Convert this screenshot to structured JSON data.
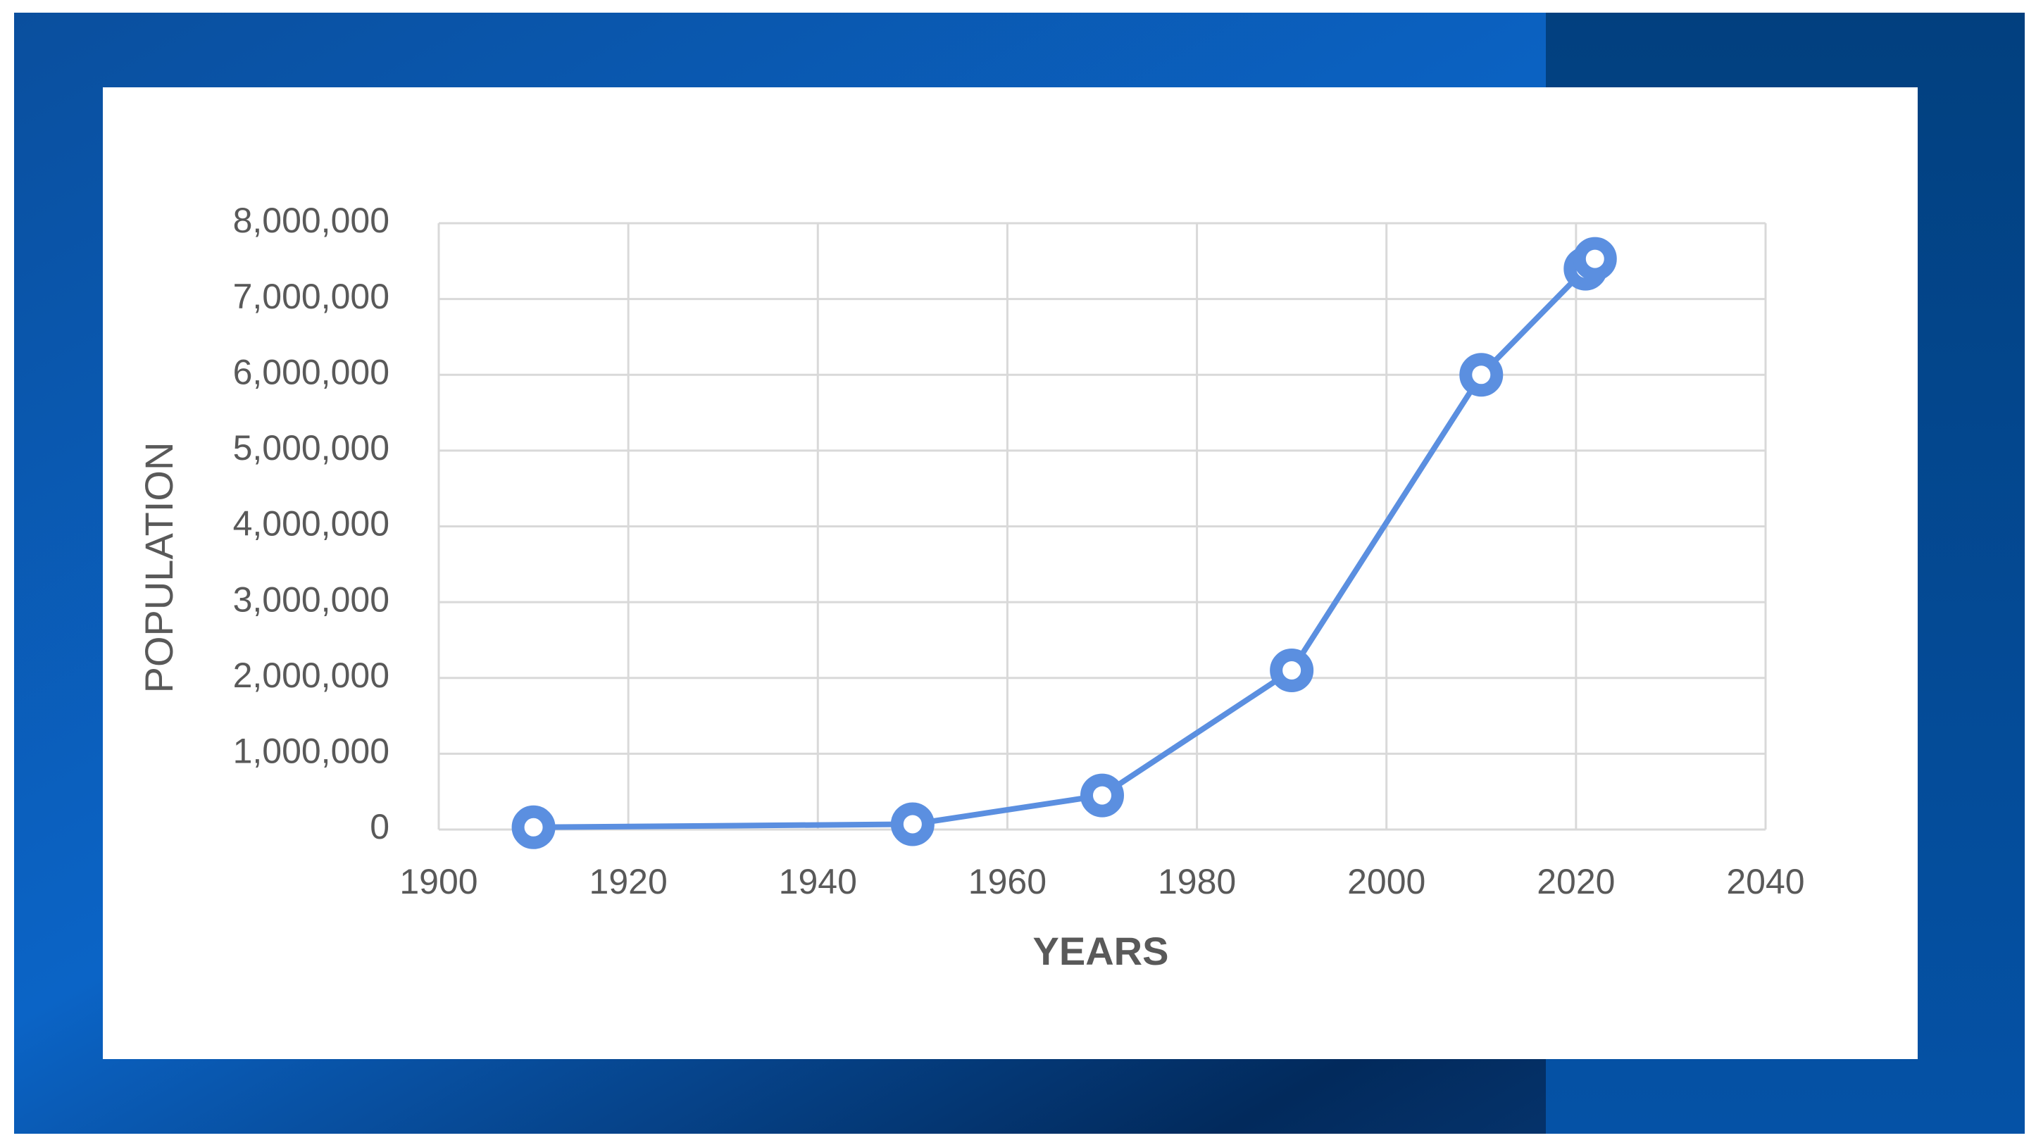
{
  "chart_data": {
    "type": "line",
    "x_label": "YEARS",
    "y_label": "POPULATION",
    "x": [
      1910,
      1950,
      1970,
      1990,
      2010,
      2021,
      2022
    ],
    "series": [
      {
        "color": "#5b8fe0",
        "values": [
          30000,
          70000,
          450000,
          2100000,
          6000000,
          7400000,
          7530000
        ]
      }
    ],
    "xlim": [
      1900,
      2040
    ],
    "xticks": [
      1900,
      1920,
      1940,
      1960,
      1980,
      2000,
      2020,
      2040
    ],
    "ylim": [
      0,
      8000000
    ],
    "yticks": [
      0,
      {
        "value": 1000000,
        "label": "1,000,000"
      },
      {
        "value": 2000000,
        "label": "2,000,000"
      },
      {
        "value": 3000000,
        "label": "3,000,000"
      },
      {
        "value": 4000000,
        "label": "4,000,000"
      },
      {
        "value": 5000000,
        "label": "5,000,000"
      },
      {
        "value": 6000000,
        "label": "6,000,000"
      },
      {
        "value": 7000000,
        "label": "7,000,000"
      },
      {
        "value": 8000000,
        "label": "8,000,000"
      }
    ],
    "grid": true
  }
}
